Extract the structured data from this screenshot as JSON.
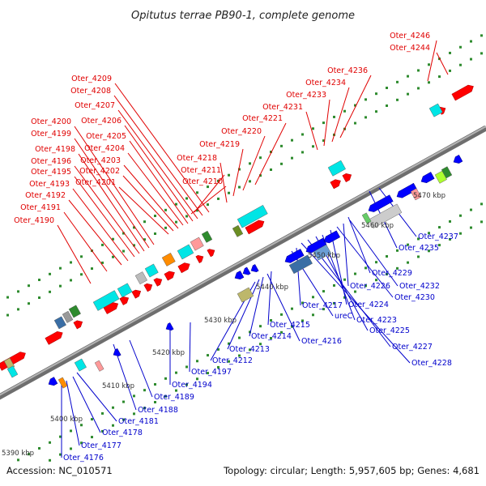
{
  "title": "Opitutus terrae PB90-1, complete genome",
  "footer": {
    "accession": "Accession: NC_010571",
    "summary": "Topology: circular; Length: 5,957,605 bp; Genes: 4,681"
  },
  "colors": {
    "forward_label": "#e00000",
    "reverse_label": "#0000cc",
    "forward_gene": "#ff0000",
    "reverse_gene": "#0000ff",
    "backbone": "#8c8c8c",
    "tick": "#2e8b2e"
  },
  "scale_labels": [
    "5390 kbp",
    "5400 kbp",
    "5410 kbp",
    "5420 kbp",
    "5430 kbp",
    "5440 kbp",
    "5450 kbp",
    "5460 kbp",
    "5470 kbp"
  ],
  "forward_labels": [
    "Oter_4246",
    "Oter_4244",
    "Oter_4236",
    "Oter_4234",
    "Oter_4233",
    "Oter_4231",
    "Oter_4221",
    "Oter_4220",
    "Oter_4219",
    "Oter_4218",
    "Oter_4211",
    "Oter_4210",
    "Oter_4209",
    "Oter_4208",
    "Oter_4207",
    "Oter_4206",
    "Oter_4205",
    "Oter_4204",
    "Oter_4203",
    "Oter_4202",
    "Oter_4201",
    "Oter_4200",
    "Oter_4199",
    "Oter_4198",
    "Oter_4196",
    "Oter_4195",
    "Oter_4193",
    "Oter_4192",
    "Oter_4191",
    "Oter_4190"
  ],
  "reverse_labels": [
    "Oter_4237",
    "Oter_4235",
    "Oter_4229",
    "Oter_4232",
    "Oter_4226",
    "Oter_4230",
    "Oter_4224",
    "Oter_4223",
    "Oter_4225",
    "Oter_4227",
    "Oter_4228",
    "Oter_4217",
    "ureC",
    "Oter_4215",
    "Oter_4216",
    "Oter_4214",
    "Oter_4213",
    "Oter_4212",
    "Oter_4197",
    "Oter_4194",
    "Oter_4189",
    "Oter_4188",
    "Oter_4181",
    "Oter_4178",
    "Oter_4177",
    "Oter_4176"
  ]
}
